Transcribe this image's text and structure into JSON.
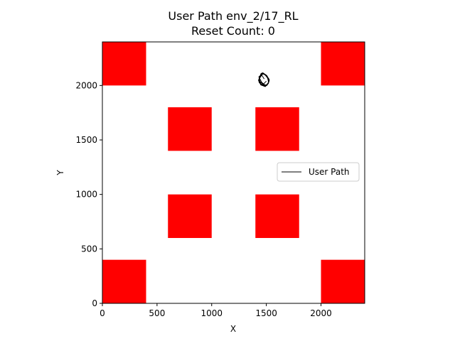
{
  "chart_data": {
    "type": "line",
    "title": "User Path env_2/17_RL",
    "subtitle": "Reset Count: 0",
    "xlabel": "X",
    "ylabel": "Y",
    "xlim": [
      0,
      2400
    ],
    "ylim": [
      0,
      2400
    ],
    "x_ticks": [
      0,
      500,
      1000,
      1500,
      2000
    ],
    "y_ticks": [
      0,
      500,
      1000,
      1500,
      2000
    ],
    "grid": false,
    "legend": {
      "placement": "center-right",
      "entries": [
        "User Path"
      ]
    },
    "obstacles": [
      {
        "x0": 0,
        "y0": 2000,
        "x1": 400,
        "y1": 2400
      },
      {
        "x0": 2000,
        "y0": 2000,
        "x1": 2400,
        "y1": 2400
      },
      {
        "x0": 600,
        "y0": 1400,
        "x1": 1000,
        "y1": 1800
      },
      {
        "x0": 1400,
        "y0": 1400,
        "x1": 1800,
        "y1": 1800
      },
      {
        "x0": 600,
        "y0": 600,
        "x1": 1000,
        "y1": 1000
      },
      {
        "x0": 1400,
        "y0": 600,
        "x1": 1800,
        "y1": 1000
      },
      {
        "x0": 0,
        "y0": 0,
        "x1": 400,
        "y1": 400
      },
      {
        "x0": 2000,
        "y0": 0,
        "x1": 2400,
        "y1": 400
      }
    ],
    "obstacle_color": "#ff0000",
    "series": [
      {
        "name": "User Path",
        "color": "#000000",
        "x": [
          1480,
          1455,
          1432,
          1440,
          1470,
          1505,
          1525,
          1510,
          1478,
          1450,
          1430,
          1445,
          1480,
          1512,
          1528,
          1505,
          1470,
          1442,
          1428,
          1450,
          1490,
          1520,
          1515,
          1482,
          1452,
          1436,
          1458,
          1495,
          1522,
          1508,
          1472,
          1444,
          1430,
          1452,
          1488,
          1516,
          1524,
          1496,
          1462,
          1438,
          1442,
          1475,
          1510,
          1526,
          1500,
          1466,
          1440,
          1434,
          1465,
          1500
        ],
        "y": [
          2060,
          2100,
          2080,
          2040,
          2010,
          2000,
          2035,
          2075,
          2110,
          2095,
          2055,
          2015,
          1995,
          2010,
          2050,
          2090,
          2115,
          2085,
          2045,
          2005,
          1990,
          2020,
          2065,
          2105,
          2110,
          2070,
          2028,
          1998,
          2030,
          2078,
          2112,
          2090,
          2050,
          2012,
          1994,
          2018,
          2060,
          2098,
          2116,
          2082,
          2036,
          2002,
          2008,
          2048,
          2092,
          2108,
          2068,
          2026,
          2004,
          2040
        ]
      }
    ]
  }
}
